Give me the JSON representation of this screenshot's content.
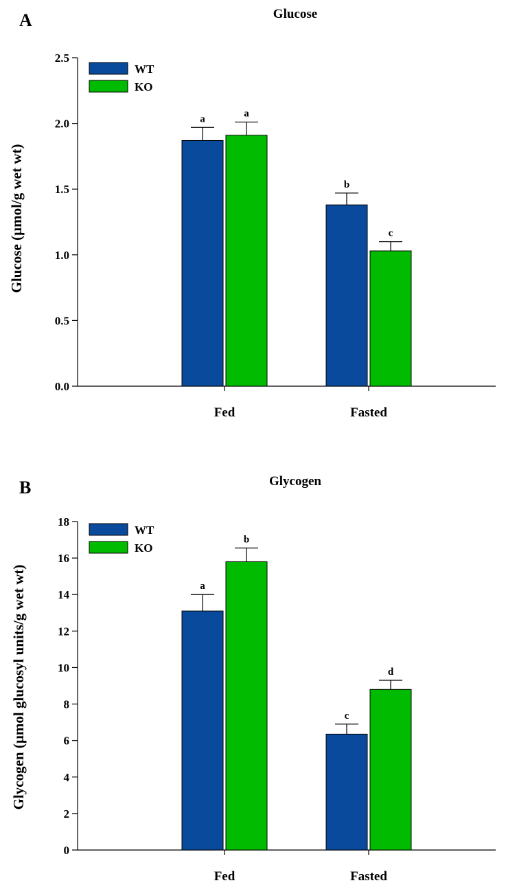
{
  "chart_data": [
    {
      "type": "bar",
      "panel": "A",
      "title": "Glucose",
      "ylabel": "Glucose (µmol/g wet wt)",
      "xlabel": "",
      "categories": [
        "Fed",
        "Fasted"
      ],
      "ylim": [
        0,
        2.5
      ],
      "yticks": [
        "0.0",
        "0.5",
        "1.0",
        "1.5",
        "2.0",
        "2.5"
      ],
      "series": [
        {
          "name": "WT",
          "color": "#0a4a9c",
          "values": [
            1.87,
            1.38
          ],
          "errors": [
            0.1,
            0.09
          ],
          "labels": [
            "a",
            "b"
          ]
        },
        {
          "name": "KO",
          "color": "#00bb00",
          "values": [
            1.91,
            1.03
          ],
          "errors": [
            0.1,
            0.07
          ],
          "labels": [
            "a",
            "c"
          ]
        }
      ],
      "legend": "top-left",
      "grid": false
    },
    {
      "type": "bar",
      "panel": "B",
      "title": "Glycogen",
      "ylabel": "Glycogen (µmol glucosyl units/g wet wt)",
      "xlabel": "",
      "categories": [
        "Fed",
        "Fasted"
      ],
      "ylim": [
        0,
        18
      ],
      "yticks": [
        "0",
        "2",
        "4",
        "6",
        "8",
        "10",
        "12",
        "14",
        "16",
        "18"
      ],
      "series": [
        {
          "name": "WT",
          "color": "#0a4a9c",
          "values": [
            13.1,
            6.35
          ],
          "errors": [
            0.9,
            0.55
          ],
          "labels": [
            "a",
            "c"
          ]
        },
        {
          "name": "KO",
          "color": "#00bb00",
          "values": [
            15.8,
            8.8
          ],
          "errors": [
            0.75,
            0.5
          ],
          "labels": [
            "b",
            "d"
          ]
        }
      ],
      "legend": "top-left",
      "grid": false
    }
  ]
}
